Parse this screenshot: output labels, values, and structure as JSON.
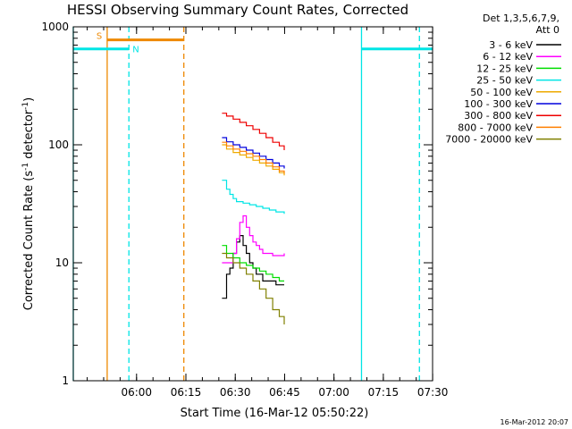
{
  "chart_data": {
    "type": "line",
    "title": "HESSI Observing Summary Count Rates, Corrected",
    "xlabel": "Start Time (16-Mar-12 05:50:22)",
    "ylabel": "Corrected Count Rate (s⁻¹ detector⁻¹)",
    "ylabel_parts": {
      "main": "Corrected Count Rate (s",
      "exp1": "-1",
      "mid": " detector",
      "exp2": "-1",
      "end": ")"
    },
    "y_scale": "log",
    "ylim": [
      1,
      1000
    ],
    "xlim_minutes_from_start": [
      -9.6,
      99.6
    ],
    "x_ticks": [
      {
        "label": "06:00",
        "min": 9.63
      },
      {
        "label": "06:15",
        "min": 24.63
      },
      {
        "label": "06:30",
        "min": 39.63
      },
      {
        "label": "06:45",
        "min": 54.63
      },
      {
        "label": "07:00",
        "min": 69.63
      },
      {
        "label": "07:15",
        "min": 84.63
      },
      {
        "label": "07:30",
        "min": 99.63
      }
    ],
    "y_ticks": [
      {
        "label": "1",
        "value": 1
      },
      {
        "label": "10",
        "value": 10
      },
      {
        "label": "100",
        "value": 100
      },
      {
        "label": "1000",
        "value": 1000
      }
    ],
    "legend_header": [
      "Det 1,3,5,6,7,9,",
      "Att 0"
    ],
    "legend_position": "right",
    "series": [
      {
        "name": "3 - 6 keV",
        "color": "#000000",
        "t": [
          35.6,
          37,
          38,
          39,
          40,
          41,
          42,
          43,
          44,
          45,
          46,
          47,
          48,
          49,
          50,
          51,
          52,
          53,
          54.5
        ],
        "values": [
          5,
          8,
          9,
          12,
          15,
          17,
          14,
          12,
          10,
          9,
          8,
          8,
          7,
          7,
          7,
          7,
          6.5,
          6.5,
          6.5
        ]
      },
      {
        "name": "6 - 12 keV",
        "color": "#ff00ff",
        "t": [
          35.6,
          37,
          38,
          39,
          40,
          41,
          42,
          43,
          44,
          45,
          46,
          47,
          48,
          49,
          50,
          51,
          52,
          53,
          54.5
        ],
        "values": [
          10,
          10,
          10,
          12,
          16,
          22,
          25,
          20,
          17,
          15,
          14,
          13,
          12,
          12,
          12,
          11.5,
          11.5,
          11.5,
          12
        ]
      },
      {
        "name": "12 - 25 keV",
        "color": "#00dd00",
        "t": [
          35.6,
          37,
          39,
          41,
          43,
          45,
          47,
          49,
          51,
          53,
          54.5
        ],
        "values": [
          14,
          12,
          11,
          10,
          9.5,
          9,
          8.5,
          8,
          7.5,
          7,
          7
        ]
      },
      {
        "name": "25 - 50 keV",
        "color": "#00e5e5",
        "t": [
          35.6,
          37,
          38,
          39,
          40,
          42,
          44,
          46,
          48,
          50,
          52,
          54.5
        ],
        "values": [
          50,
          42,
          38,
          35,
          33,
          32,
          31,
          30,
          29,
          28,
          27,
          26
        ]
      },
      {
        "name": "50 - 100 keV",
        "color": "#eeaa00",
        "t": [
          35.6,
          37,
          39,
          41,
          43,
          45,
          47,
          49,
          51,
          53,
          54.5
        ],
        "values": [
          100,
          92,
          86,
          82,
          78,
          74,
          70,
          66,
          62,
          58,
          55
        ]
      },
      {
        "name": "100 - 300 keV",
        "color": "#0000dd",
        "t": [
          35.6,
          37,
          39,
          41,
          43,
          45,
          47,
          49,
          51,
          53,
          54.5
        ],
        "values": [
          115,
          106,
          100,
          95,
          90,
          85,
          80,
          75,
          70,
          66,
          63
        ]
      },
      {
        "name": "300 - 800 keV",
        "color": "#ee0000",
        "t": [
          35.6,
          37,
          39,
          41,
          43,
          45,
          47,
          49,
          51,
          53,
          54.5
        ],
        "values": [
          185,
          175,
          165,
          155,
          145,
          135,
          125,
          115,
          105,
          98,
          90
        ]
      },
      {
        "name": "800 - 7000 keV",
        "color": "#ff7f00",
        "t": [
          35.6,
          37,
          39,
          41,
          43,
          45,
          47,
          49,
          51,
          53,
          54.5
        ],
        "values": [
          105,
          98,
          92,
          88,
          84,
          80,
          75,
          70,
          65,
          60,
          57
        ]
      },
      {
        "name": "7000 - 20000 keV",
        "color": "#808000",
        "t": [
          35.6,
          37,
          39,
          41,
          43,
          45,
          47,
          49,
          51,
          53,
          54.5
        ],
        "values": [
          12,
          11,
          10,
          9,
          8,
          7,
          6,
          5,
          4,
          3.5,
          3
        ]
      }
    ],
    "flag_lines": [
      {
        "t": -9.6,
        "color": "#00e5e5",
        "style": "solid"
      },
      {
        "t": 0.7,
        "color": "#ee8800",
        "style": "solid"
      },
      {
        "t": 7.3,
        "color": "#00e5e5",
        "style": "dashed"
      },
      {
        "t": 24.0,
        "color": "#ee8800",
        "style": "dashed"
      },
      {
        "t": 78.0,
        "color": "#00e5e5",
        "style": "solid"
      },
      {
        "t": 95.6,
        "color": "#00e5e5",
        "style": "dashed"
      }
    ],
    "saa_bar": {
      "label": "S",
      "color": "#ee8800",
      "t_start": 0.7,
      "t_end": 24.0,
      "value": 775
    },
    "night_bars": [
      {
        "label": "N",
        "color": "#00e5e5",
        "t_start": -9.6,
        "t_end": 7.3,
        "value": 650
      },
      {
        "label": "",
        "color": "#00e5e5",
        "t_start": 78.0,
        "t_end": 99.6,
        "value": 650
      }
    ]
  },
  "timestamp": "16-Mar-2012 20:07"
}
